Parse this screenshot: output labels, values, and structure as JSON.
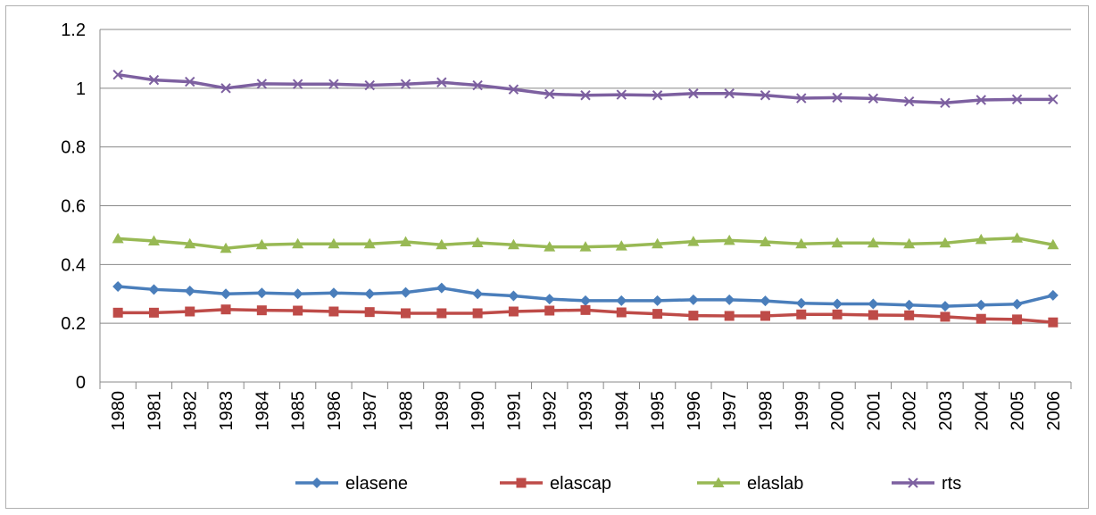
{
  "chart_data": {
    "type": "line",
    "title": "",
    "xlabel": "",
    "ylabel": "",
    "ylim": [
      0,
      1.2
    ],
    "yticks": [
      "0",
      "0.2",
      "0.4",
      "0.6",
      "0.8",
      "1",
      "1.2"
    ],
    "categories": [
      "1980",
      "1981",
      "1982",
      "1983",
      "1984",
      "1985",
      "1986",
      "1987",
      "1988",
      "1989",
      "1990",
      "1991",
      "1992",
      "1993",
      "1994",
      "1995",
      "1996",
      "1997",
      "1998",
      "1999",
      "2000",
      "2001",
      "2002",
      "2003",
      "2004",
      "2005",
      "2006"
    ],
    "grid": true,
    "legend_position": "bottom",
    "series": [
      {
        "name": "elasene",
        "color": "#4a7ebb",
        "marker": "diamond",
        "values": [
          0.325,
          0.315,
          0.31,
          0.3,
          0.303,
          0.3,
          0.303,
          0.3,
          0.305,
          0.32,
          0.3,
          0.293,
          0.282,
          0.277,
          0.277,
          0.277,
          0.28,
          0.28,
          0.276,
          0.268,
          0.266,
          0.266,
          0.262,
          0.258,
          0.262,
          0.265,
          0.295
        ]
      },
      {
        "name": "elascap",
        "color": "#be4b48",
        "marker": "square",
        "values": [
          0.236,
          0.236,
          0.24,
          0.247,
          0.244,
          0.243,
          0.24,
          0.238,
          0.234,
          0.234,
          0.234,
          0.24,
          0.243,
          0.245,
          0.237,
          0.232,
          0.226,
          0.225,
          0.225,
          0.23,
          0.23,
          0.228,
          0.227,
          0.222,
          0.215,
          0.213,
          0.203
        ]
      },
      {
        "name": "elaslab",
        "color": "#98b954",
        "marker": "triangle",
        "values": [
          0.488,
          0.48,
          0.47,
          0.455,
          0.467,
          0.47,
          0.47,
          0.47,
          0.477,
          0.467,
          0.474,
          0.467,
          0.46,
          0.46,
          0.463,
          0.47,
          0.478,
          0.482,
          0.477,
          0.47,
          0.473,
          0.473,
          0.47,
          0.473,
          0.485,
          0.49,
          0.467
        ]
      },
      {
        "name": "rts",
        "color": "#7d60a0",
        "marker": "x",
        "values": [
          1.046,
          1.028,
          1.022,
          1.0,
          1.015,
          1.014,
          1.014,
          1.01,
          1.014,
          1.02,
          1.01,
          0.996,
          0.98,
          0.976,
          0.978,
          0.976,
          0.982,
          0.982,
          0.976,
          0.966,
          0.968,
          0.965,
          0.955,
          0.95,
          0.96,
          0.962,
          0.962
        ]
      }
    ]
  }
}
